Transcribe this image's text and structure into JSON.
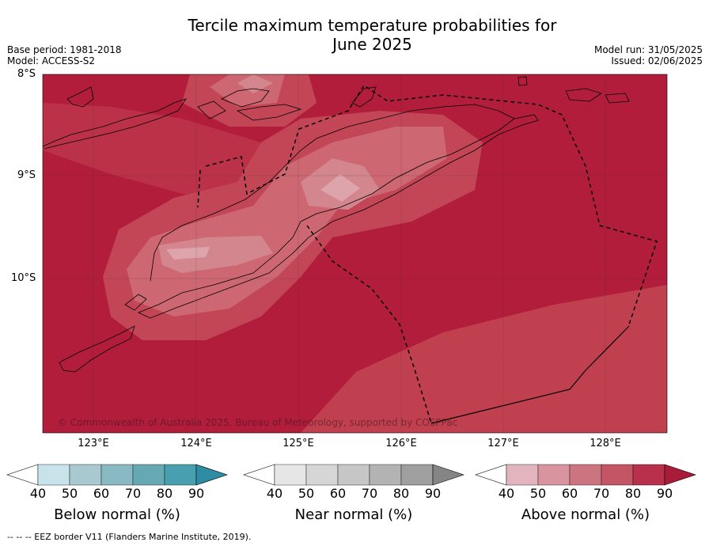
{
  "title_line1": "Tercile maximum temperature probabilities for",
  "title_line2": "June 2025",
  "meta_left": [
    "Base period: 1981-2018",
    "Model: ACCESS-S2"
  ],
  "meta_right": [
    "Model run: 31/05/2025",
    "Issued: 02/06/2025"
  ],
  "lat_labels": [
    "8°S",
    "9°S",
    "10°S"
  ],
  "lon_labels": [
    "123°E",
    "124°E",
    "125°E",
    "126°E",
    "127°E",
    "128°E"
  ],
  "copyright": "© Commonwealth of Australia 2025. Bureau of Meteorology, supported by COSPPac",
  "footer": "--  --  -- EEZ border V11 (Flanders Marine Institute, 2019).",
  "colorbars": [
    {
      "title": "Below normal (%)",
      "ticks": [
        "40",
        "50",
        "60",
        "70",
        "80",
        "90"
      ],
      "colors": [
        "#c9e3ea",
        "#a8c9cf",
        "#89b9c2",
        "#67a8b5",
        "#479fb0",
        "#2e8ca4"
      ]
    },
    {
      "title": "Near normal (%)",
      "ticks": [
        "40",
        "50",
        "60",
        "70",
        "80",
        "90"
      ],
      "colors": [
        "#e6e6e6",
        "#d6d6d6",
        "#c6c6c6",
        "#b3b3b3",
        "#9f9f9f",
        "#858585"
      ]
    },
    {
      "title": "Above normal (%)",
      "ticks": [
        "40",
        "50",
        "60",
        "70",
        "80",
        "90"
      ],
      "colors": [
        "#e2b4bd",
        "#d8949f",
        "#cc7580",
        "#c35565",
        "#b8304b",
        "#a81c3a"
      ]
    }
  ]
}
